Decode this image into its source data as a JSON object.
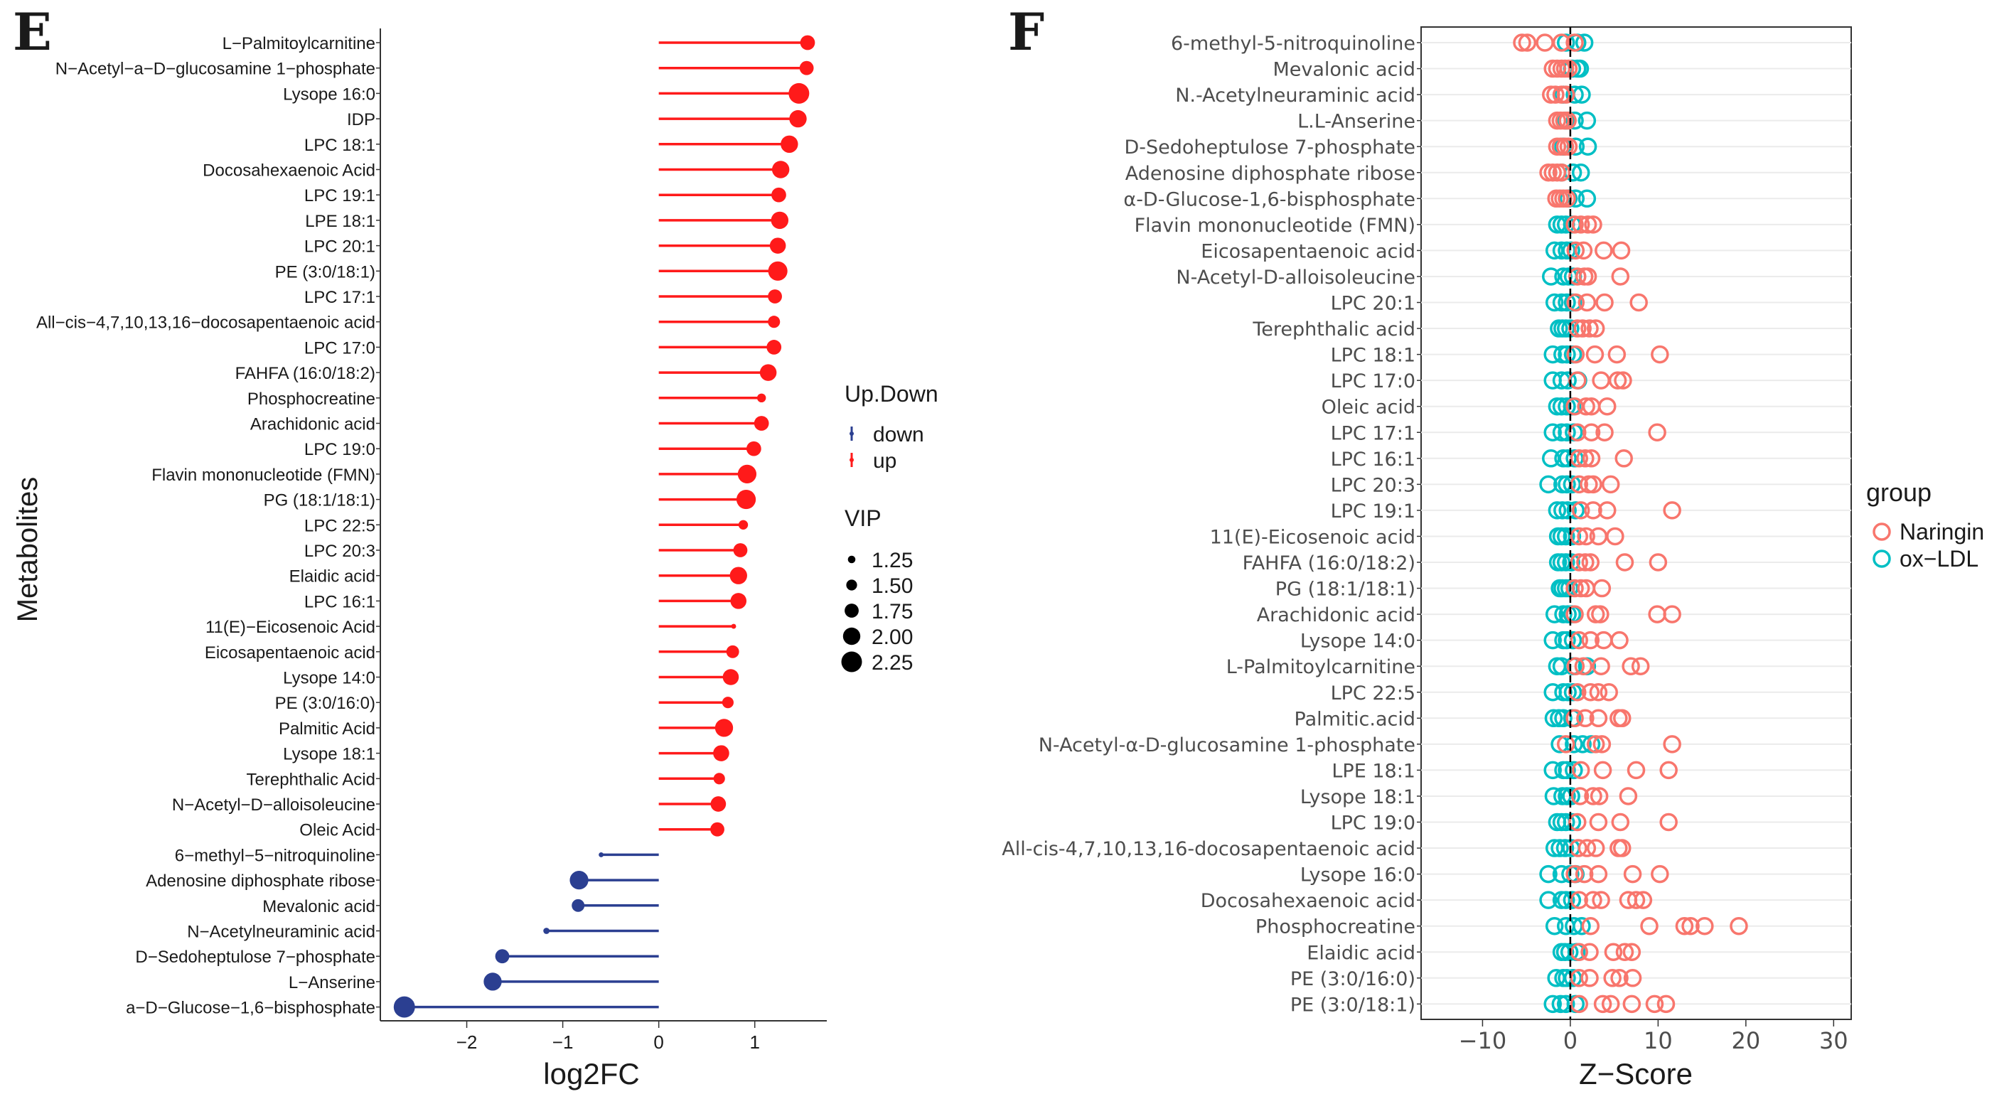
{
  "chart_data": [
    {
      "panel": "E",
      "type": "lollipop",
      "xlabel": "log2FC",
      "ylabel": "Metabolites",
      "xlim": [
        -2.9,
        1.75
      ],
      "xticks": [
        -2,
        -1,
        0,
        1
      ],
      "xtick_labels": [
        "−2",
        "−1",
        "0",
        "1"
      ],
      "legend_updown_title": "Up.Down",
      "legend_updown": [
        {
          "label": "down",
          "color": "#2b3f91"
        },
        {
          "label": "up",
          "color": "#ff1a1a"
        }
      ],
      "legend_vip_title": "VIP",
      "legend_vip": [
        {
          "label": "1.25",
          "vip": 1.25
        },
        {
          "label": "1.50",
          "vip": 1.5
        },
        {
          "label": "1.75",
          "vip": 1.75
        },
        {
          "label": "2.00",
          "vip": 2.0
        },
        {
          "label": "2.25",
          "vip": 2.25
        }
      ],
      "rows": [
        {
          "name": "L−Palmitoylcarnitine",
          "value": 1.55,
          "vip": 1.8,
          "group": "up"
        },
        {
          "name": "N−Acetyl−a−D−glucosamine 1−phosphate",
          "value": 1.54,
          "vip": 1.75,
          "group": "up"
        },
        {
          "name": "Lysope 16:0",
          "value": 1.46,
          "vip": 2.25,
          "group": "up"
        },
        {
          "name": "IDP",
          "value": 1.45,
          "vip": 2.0,
          "group": "up"
        },
        {
          "name": "LPC 18:1",
          "value": 1.36,
          "vip": 2.0,
          "group": "up"
        },
        {
          "name": "Docosahexaenoic Acid",
          "value": 1.27,
          "vip": 2.0,
          "group": "up"
        },
        {
          "name": "LPC 19:1",
          "value": 1.25,
          "vip": 1.8,
          "group": "up"
        },
        {
          "name": "LPE 18:1",
          "value": 1.26,
          "vip": 2.0,
          "group": "up"
        },
        {
          "name": "LPC 20:1",
          "value": 1.24,
          "vip": 1.9,
          "group": "up"
        },
        {
          "name": "PE (3:0/18:1)",
          "value": 1.24,
          "vip": 2.15,
          "group": "up"
        },
        {
          "name": "LPC 17:1",
          "value": 1.21,
          "vip": 1.75,
          "group": "up"
        },
        {
          "name": "All−cis−4,7,10,13,16−docosapentaenoic acid",
          "value": 1.2,
          "vip": 1.6,
          "group": "up"
        },
        {
          "name": "LPC 17:0",
          "value": 1.2,
          "vip": 1.8,
          "group": "up"
        },
        {
          "name": "FAHFA (16:0/18:2)",
          "value": 1.14,
          "vip": 1.95,
          "group": "up"
        },
        {
          "name": "Phosphocreatine",
          "value": 1.07,
          "vip": 1.35,
          "group": "up"
        },
        {
          "name": "Arachidonic acid",
          "value": 1.07,
          "vip": 1.8,
          "group": "up"
        },
        {
          "name": "LPC 19:0",
          "value": 0.99,
          "vip": 1.8,
          "group": "up"
        },
        {
          "name": "Flavin mononucleotide (FMN)",
          "value": 0.92,
          "vip": 2.1,
          "group": "up"
        },
        {
          "name": "PG (18:1/18:1)",
          "value": 0.91,
          "vip": 2.15,
          "group": "up"
        },
        {
          "name": "LPC 22:5",
          "value": 0.88,
          "vip": 1.4,
          "group": "up"
        },
        {
          "name": "LPC 20:3",
          "value": 0.85,
          "vip": 1.75,
          "group": "up"
        },
        {
          "name": "Elaidic acid",
          "value": 0.83,
          "vip": 2.0,
          "group": "up"
        },
        {
          "name": "LPC 16:1",
          "value": 0.83,
          "vip": 1.9,
          "group": "up"
        },
        {
          "name": "11(E)−Eicosenoic Acid",
          "value": 0.78,
          "vip": 1.05,
          "group": "up"
        },
        {
          "name": "Eicosapentaenoic acid",
          "value": 0.77,
          "vip": 1.65,
          "group": "up"
        },
        {
          "name": "Lysope 14:0",
          "value": 0.75,
          "vip": 1.9,
          "group": "up"
        },
        {
          "name": "PE (3:0/16:0)",
          "value": 0.72,
          "vip": 1.55,
          "group": "up"
        },
        {
          "name": "Palmitic Acid",
          "value": 0.68,
          "vip": 2.05,
          "group": "up"
        },
        {
          "name": "Lysope 18:1",
          "value": 0.65,
          "vip": 1.9,
          "group": "up"
        },
        {
          "name": "Terephthalic Acid",
          "value": 0.63,
          "vip": 1.55,
          "group": "up"
        },
        {
          "name": "N−Acetyl−D−alloisoleucine",
          "value": 0.62,
          "vip": 1.85,
          "group": "up"
        },
        {
          "name": "Oleic Acid",
          "value": 0.61,
          "vip": 1.75,
          "group": "up"
        },
        {
          "name": "6−methyl−5−nitroquinoline",
          "value": -0.6,
          "vip": 1.05,
          "group": "down"
        },
        {
          "name": "Adenosine diphosphate ribose",
          "value": -0.83,
          "vip": 2.1,
          "group": "down"
        },
        {
          "name": "Mevalonic acid",
          "value": -0.84,
          "vip": 1.65,
          "group": "down"
        },
        {
          "name": "N−Acetylneuraminic acid",
          "value": -1.17,
          "vip": 1.15,
          "group": "down"
        },
        {
          "name": "D−Sedoheptulose 7−phosphate",
          "value": -1.63,
          "vip": 1.75,
          "group": "down"
        },
        {
          "name": "L−Anserine",
          "value": -1.73,
          "vip": 2.05,
          "group": "down"
        },
        {
          "name": "a−D−Glucose−1,6−bisphosphate",
          "value": -2.65,
          "vip": 2.3,
          "group": "down"
        }
      ]
    },
    {
      "panel": "F",
      "type": "scatter",
      "xlabel": "Z−Score",
      "xlim": [
        -17,
        32
      ],
      "xticks": [
        -10,
        0,
        10,
        20,
        30
      ],
      "xtick_labels": [
        "−10",
        "0",
        "10",
        "20",
        "30"
      ],
      "ref_line_x": 0,
      "legend_title": "group",
      "series": [
        {
          "name": "Naringin",
          "color": "#f8766d"
        },
        {
          "name": "ox−LDL",
          "color": "#00bfc4"
        }
      ],
      "rows": [
        {
          "name": "6-methyl-5-nitroquinoline",
          "naringin": [
            -5.5,
            -4.9,
            -2.9,
            -1.0,
            0.5
          ],
          "oxldl": [
            -0.5,
            0.8,
            1.6
          ]
        },
        {
          "name": "Mevalonic acid",
          "naringin": [
            -2.0,
            -1.5,
            -1.0,
            -0.6,
            -0.2
          ],
          "oxldl": [
            0.2,
            0.8,
            1.1
          ]
        },
        {
          "name": "N.-Acetylneuraminic acid",
          "naringin": [
            -2.2,
            -1.7,
            -1.0,
            -0.5
          ],
          "oxldl": [
            -0.8,
            0.5,
            1.3
          ]
        },
        {
          "name": "L.L-Anserine",
          "naringin": [
            -1.5,
            -1.1,
            -0.7,
            -0.3
          ],
          "oxldl": [
            -0.5,
            0.5,
            1.9
          ]
        },
        {
          "name": "D-Sedoheptulose 7-phosphate",
          "naringin": [
            -1.5,
            -1.1,
            -0.6,
            -0.2
          ],
          "oxldl": [
            -0.8,
            0.6,
            2.0
          ]
        },
        {
          "name": "Adenosine diphosphate ribose",
          "naringin": [
            -2.5,
            -2.0,
            -1.5,
            -1.0
          ],
          "oxldl": [
            -1.0,
            0.3,
            1.2
          ]
        },
        {
          "name": "α-D-Glucose-1,6-bisphosphate",
          "naringin": [
            -1.6,
            -1.2,
            -0.8,
            -0.4
          ],
          "oxldl": [
            -0.2,
            0.6,
            1.9
          ]
        },
        {
          "name": "Flavin mononucleotide (FMN)",
          "naringin": [
            0.5,
            1.2,
            2.0,
            2.6
          ],
          "oxldl": [
            -1.5,
            -1.0,
            -0.5,
            0.2
          ]
        },
        {
          "name": "Eicosapentaenoic acid",
          "naringin": [
            0.6,
            1.5,
            3.8,
            5.8
          ],
          "oxldl": [
            -1.8,
            -1.0,
            -0.4,
            0.1
          ]
        },
        {
          "name": "N-Acetyl-D-alloisoleucine",
          "naringin": [
            0.8,
            1.6,
            2.0,
            5.7
          ],
          "oxldl": [
            -2.2,
            -0.8,
            -0.2,
            0.3
          ]
        },
        {
          "name": "LPC 20:1",
          "naringin": [
            0.6,
            1.9,
            3.9,
            7.8
          ],
          "oxldl": [
            -1.8,
            -1.0,
            -0.4,
            0.3
          ]
        },
        {
          "name": "Terephthalic acid",
          "naringin": [
            0.8,
            1.4,
            2.2,
            2.9
          ],
          "oxldl": [
            -1.3,
            -0.9,
            -0.5,
            0.0
          ]
        },
        {
          "name": "LPC 18:1",
          "naringin": [
            0.6,
            2.8,
            5.3,
            10.2
          ],
          "oxldl": [
            -2.0,
            -0.9,
            -0.4,
            0.3
          ]
        },
        {
          "name": "LPC 17:0",
          "naringin": [
            0.8,
            3.5,
            5.4,
            6.0
          ],
          "oxldl": [
            -2.0,
            -1.0,
            -0.3,
            0.9
          ]
        },
        {
          "name": "Oleic acid",
          "naringin": [
            0.5,
            1.8,
            2.4,
            4.2
          ],
          "oxldl": [
            -1.5,
            -1.0,
            -0.4,
            0.2
          ]
        },
        {
          "name": "LPC 17:1",
          "naringin": [
            0.8,
            2.4,
            3.9,
            9.9
          ],
          "oxldl": [
            -2.0,
            -1.0,
            -0.4,
            0.4
          ]
        },
        {
          "name": "LPC 16:1",
          "naringin": [
            1.0,
            1.7,
            2.4,
            6.1
          ],
          "oxldl": [
            -2.2,
            -0.8,
            -0.3,
            0.5
          ]
        },
        {
          "name": "LPC 20:3",
          "naringin": [
            1.0,
            2.1,
            2.6,
            4.6
          ],
          "oxldl": [
            -2.5,
            -0.9,
            -0.4,
            0.2
          ]
        },
        {
          "name": "LPC 19:1",
          "naringin": [
            1.2,
            2.6,
            4.2,
            11.6
          ],
          "oxldl": [
            -1.5,
            -0.9,
            -0.3,
            0.6
          ]
        },
        {
          "name": "11(E)-Eicosenoic acid",
          "naringin": [
            1.0,
            1.8,
            3.2,
            5.1
          ],
          "oxldl": [
            -1.4,
            -1.0,
            -0.5,
            0.2
          ]
        },
        {
          "name": "FAHFA (16:0/18:2)",
          "naringin": [
            1.0,
            1.7,
            2.3,
            6.2,
            10.0
          ],
          "oxldl": [
            -1.4,
            -1.0,
            -0.5,
            0.1
          ]
        },
        {
          "name": "PG (18:1/18:1)",
          "naringin": [
            0.5,
            1.2,
            1.8,
            3.6
          ],
          "oxldl": [
            -1.2,
            -0.9,
            -0.5,
            -0.1
          ]
        },
        {
          "name": "Arachidonic acid",
          "naringin": [
            0.5,
            2.9,
            3.4,
            9.9,
            11.6
          ],
          "oxldl": [
            -1.8,
            -0.8,
            -0.3,
            0.2
          ]
        },
        {
          "name": "Lysope 14:0",
          "naringin": [
            1.0,
            2.3,
            3.8,
            5.6
          ],
          "oxldl": [
            -2.0,
            -0.8,
            -0.4,
            0.3
          ]
        },
        {
          "name": "L-Palmitoylcarnitine",
          "naringin": [
            0.6,
            1.5,
            3.5,
            6.9,
            8.0
          ],
          "oxldl": [
            -1.5,
            -1.0,
            0.3,
            1.9
          ]
        },
        {
          "name": "LPC 22:5",
          "naringin": [
            0.8,
            2.3,
            3.2,
            4.4
          ],
          "oxldl": [
            -2.0,
            -0.8,
            -0.3,
            0.3
          ]
        },
        {
          "name": "Palmitic.acid",
          "naringin": [
            0.5,
            1.7,
            3.2,
            5.5,
            5.9
          ],
          "oxldl": [
            -1.9,
            -1.3,
            -0.8,
            0.2
          ]
        },
        {
          "name": "N-Acetyl-α-D-glucosamine 1-phosphate",
          "naringin": [
            -0.5,
            2.9,
            3.6,
            11.6
          ],
          "oxldl": [
            -1.2,
            0.4,
            1.4,
            2.4
          ]
        },
        {
          "name": "LPE 18:1",
          "naringin": [
            1.2,
            3.7,
            7.5,
            11.2
          ],
          "oxldl": [
            -2.0,
            -0.8,
            -0.4,
            0.4
          ]
        },
        {
          "name": "Lysope 18:1",
          "naringin": [
            1.1,
            2.6,
            3.3,
            6.6
          ],
          "oxldl": [
            -1.9,
            -0.9,
            -0.4,
            0.1
          ]
        },
        {
          "name": "LPC 19:0",
          "naringin": [
            0.8,
            3.2,
            5.7,
            11.2
          ],
          "oxldl": [
            -1.5,
            -1.0,
            -0.5,
            0.2
          ]
        },
        {
          "name": "All-cis-4,7,10,13,16-docosapentaenoic acid",
          "naringin": [
            0.9,
            1.9,
            2.9,
            5.5,
            5.9
          ],
          "oxldl": [
            -1.8,
            -1.2,
            -0.6,
            0.1
          ]
        },
        {
          "name": "Lysope 16:0",
          "naringin": [
            0.5,
            1.6,
            3.2,
            7.1,
            10.2
          ],
          "oxldl": [
            -2.5,
            -1.0,
            0.0,
            0.6
          ]
        },
        {
          "name": "Docosahexaenoic acid",
          "naringin": [
            1.0,
            2.6,
            3.5,
            6.6,
            7.5,
            8.3
          ],
          "oxldl": [
            -2.5,
            -1.0,
            -0.5,
            0.2
          ]
        },
        {
          "name": "Phosphocreatine",
          "naringin": [
            2.3,
            9.0,
            13.0,
            13.7,
            15.3,
            19.2
          ],
          "oxldl": [
            -1.8,
            -0.5,
            0.4,
            1.3
          ]
        },
        {
          "name": "Elaidic acid",
          "naringin": [
            1.0,
            2.2,
            4.9,
            6.2,
            7.0
          ],
          "oxldl": [
            -1.0,
            -0.6,
            -0.1,
            0.7
          ]
        },
        {
          "name": "PE (3:0/16:0)",
          "naringin": [
            1.0,
            2.2,
            4.8,
            5.6,
            7.1
          ],
          "oxldl": [
            -1.6,
            -0.8,
            -0.4,
            0.3
          ]
        },
        {
          "name": "PE (3:0/18:1)",
          "naringin": [
            1.0,
            3.7,
            4.6,
            7.0,
            9.6,
            10.9
          ],
          "oxldl": [
            -2.0,
            -1.1,
            -0.5,
            0.6
          ]
        }
      ]
    }
  ],
  "panel_labels": {
    "e": "E",
    "f": "F"
  }
}
